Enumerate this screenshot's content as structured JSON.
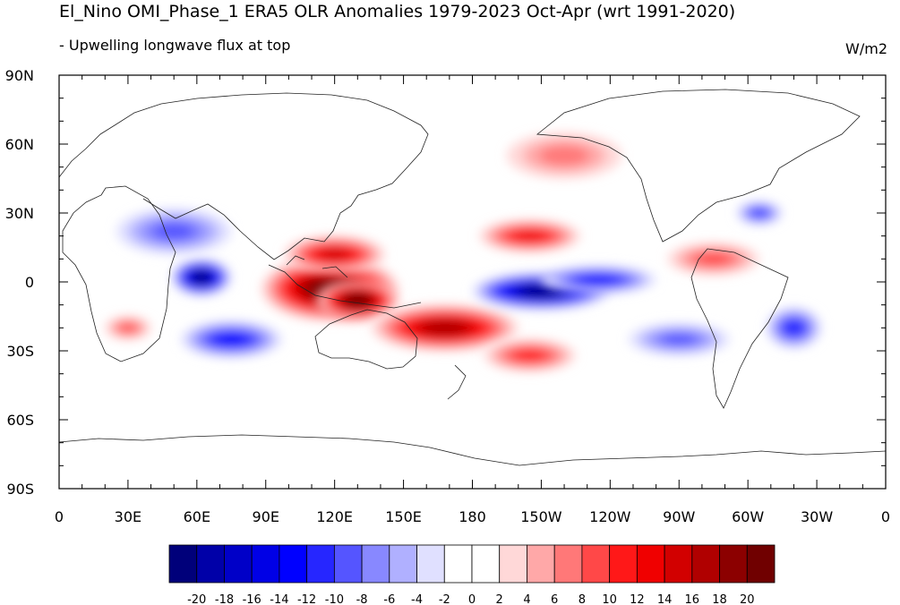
{
  "chart_data": {
    "type": "heatmap",
    "title": "El_Nino OMI_Phase_1 ERA5 OLR Anomalies 1979-2023 Oct-Apr (wrt 1991-2020)",
    "subtitle": "- Upwelling longwave flux at top",
    "units": "W/m2",
    "x_ticks": [
      "0",
      "30E",
      "60E",
      "90E",
      "120E",
      "150E",
      "180",
      "150W",
      "120W",
      "90W",
      "60W",
      "30W",
      "0"
    ],
    "y_ticks": [
      "90N",
      "60N",
      "30N",
      "0",
      "30S",
      "60S",
      "90S"
    ],
    "x_range": [
      0,
      360
    ],
    "y_range": [
      -90,
      90
    ],
    "colorbar": {
      "levels": [
        -20,
        -18,
        -16,
        -14,
        -12,
        -10,
        -8,
        -6,
        -4,
        -2,
        0,
        2,
        4,
        6,
        8,
        10,
        12,
        14,
        16,
        18,
        20
      ],
      "labels": [
        "-20",
        "-18",
        "-16",
        "-14",
        "-12",
        "-10",
        "-8",
        "-6",
        "-4",
        "-2",
        "0",
        "2",
        "4",
        "6",
        "8",
        "10",
        "12",
        "14",
        "16",
        "18",
        "20"
      ],
      "colors": [
        "#00007a",
        "#0000a8",
        "#0000c8",
        "#0000e6",
        "#0000ff",
        "#2626ff",
        "#5555ff",
        "#8888ff",
        "#b0b0ff",
        "#e0e0ff",
        "#ffffff",
        "#ffffff",
        "#ffd8d8",
        "#ffa8a8",
        "#ff7878",
        "#ff4848",
        "#ff1818",
        "#f00000",
        "#d20000",
        "#b00000",
        "#8c0000",
        "#700000"
      ]
    },
    "features": [
      {
        "name": "maritime-continent-positive",
        "lon": 118,
        "lat": -3,
        "rx": 30,
        "ry": 14,
        "value": 21
      },
      {
        "name": "indonesia-core-positive",
        "lon": 130,
        "lat": -8,
        "rx": 18,
        "ry": 9,
        "value": 21
      },
      {
        "name": "spcz-positive",
        "lon": 168,
        "lat": -20,
        "rx": 32,
        "ry": 10,
        "value": 17
      },
      {
        "name": "south-pacific-tail-positive",
        "lon": 205,
        "lat": -32,
        "rx": 20,
        "ry": 7,
        "value": 10
      },
      {
        "name": "west-pacific-north-positive",
        "lon": 120,
        "lat": 12,
        "rx": 22,
        "ry": 8,
        "value": 14
      },
      {
        "name": "central-pacific-negative",
        "lon": 210,
        "lat": -4,
        "rx": 30,
        "ry": 8,
        "value": -21
      },
      {
        "name": "equatorial-pacific-tongue-negative",
        "lon": 235,
        "lat": 1,
        "rx": 25,
        "ry": 6,
        "value": -12
      },
      {
        "name": "indian-ocean-negative",
        "lon": 62,
        "lat": 2,
        "rx": 13,
        "ry": 8,
        "value": -21
      },
      {
        "name": "south-indian-negative",
        "lon": 75,
        "lat": -25,
        "rx": 22,
        "ry": 8,
        "value": -12
      },
      {
        "name": "arabian-negative",
        "lon": 50,
        "lat": 22,
        "rx": 25,
        "ry": 10,
        "value": -8
      },
      {
        "name": "subtropical-north-pacific-positive",
        "lon": 205,
        "lat": 20,
        "rx": 22,
        "ry": 7,
        "value": 12
      },
      {
        "name": "north-pacific-positive",
        "lon": 220,
        "lat": 55,
        "rx": 25,
        "ry": 10,
        "value": 6
      },
      {
        "name": "caribbean-positive",
        "lon": 285,
        "lat": 10,
        "rx": 20,
        "ry": 7,
        "value": 8
      },
      {
        "name": "south-atlantic-negative",
        "lon": 320,
        "lat": -20,
        "rx": 12,
        "ry": 9,
        "value": -11
      },
      {
        "name": "north-atlantic-negative",
        "lon": 305,
        "lat": 30,
        "rx": 10,
        "ry": 5,
        "value": -10
      },
      {
        "name": "southeast-pacific-negative",
        "lon": 270,
        "lat": -25,
        "rx": 22,
        "ry": 7,
        "value": -8
      },
      {
        "name": "southern-africa-positive",
        "lon": 30,
        "lat": -20,
        "rx": 10,
        "ry": 5,
        "value": 8
      }
    ]
  }
}
